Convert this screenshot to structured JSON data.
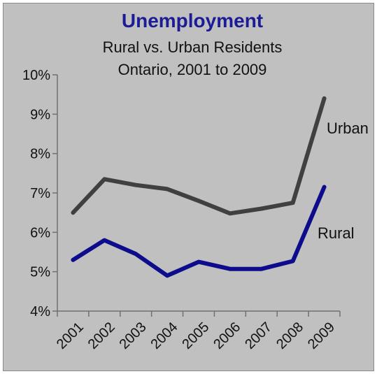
{
  "chart_data": {
    "type": "line",
    "title": "Unemployment",
    "subtitle_lines": [
      "Rural vs. Urban Residents",
      "Ontario, 2001 to 2009"
    ],
    "categories": [
      "2001",
      "2002",
      "2003",
      "2004",
      "2005",
      "2006",
      "2007",
      "2008",
      "2009"
    ],
    "y_ticks": [
      "4%",
      "5%",
      "6%",
      "7%",
      "8%",
      "9%",
      "10%"
    ],
    "ylim": [
      4,
      10
    ],
    "grid": false,
    "series": [
      {
        "name": "Urban",
        "color": "#404040",
        "values": [
          6.5,
          7.35,
          7.2,
          7.1,
          6.8,
          6.48,
          6.6,
          6.75,
          9.4
        ]
      },
      {
        "name": "Rural",
        "color": "#0c0c8c",
        "values": [
          5.3,
          5.8,
          5.45,
          4.9,
          5.25,
          5.07,
          5.07,
          5.27,
          7.15
        ]
      }
    ]
  }
}
